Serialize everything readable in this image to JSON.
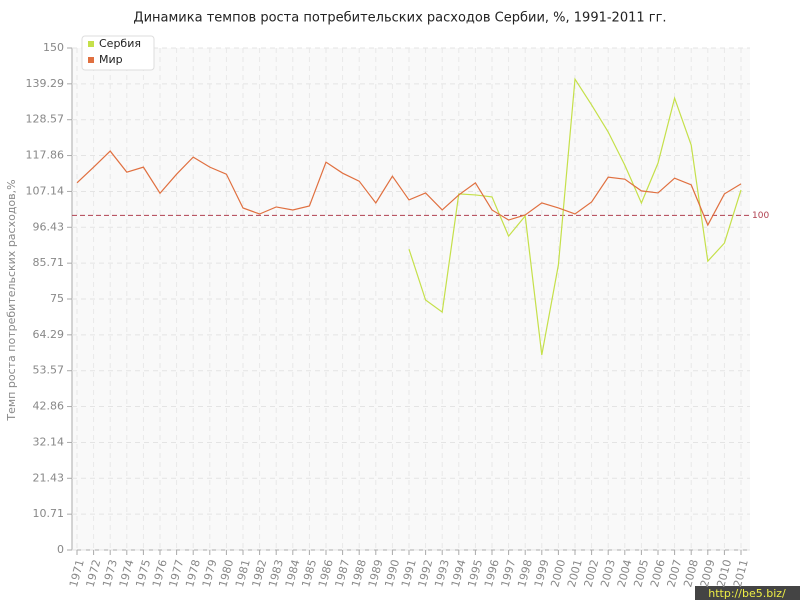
{
  "chart_data": {
    "type": "line",
    "title": "Динамика темпов роста потребительских расходов Сербии, %, 1991-2011 гг.",
    "y_label": "Темп роста потребительских расходов,%",
    "categories": [
      "1971",
      "1972",
      "1973",
      "1974",
      "1975",
      "1976",
      "1977",
      "1978",
      "1979",
      "1980",
      "1981",
      "1982",
      "1983",
      "1984",
      "1985",
      "1986",
      "1987",
      "1988",
      "1989",
      "1990",
      "1991",
      "1992",
      "1993",
      "1994",
      "1995",
      "1996",
      "1997",
      "1998",
      "1999",
      "2000",
      "2001",
      "2002",
      "2003",
      "2004",
      "2005",
      "2006",
      "2007",
      "2008",
      "2009",
      "2010",
      "2011"
    ],
    "series": [
      {
        "name": "Сербия",
        "color": "#c5e04a",
        "values": [
          null,
          null,
          null,
          null,
          null,
          null,
          null,
          null,
          null,
          null,
          null,
          null,
          null,
          null,
          null,
          null,
          null,
          null,
          null,
          null,
          89.9,
          74.7,
          71.1,
          106.4,
          106.1,
          105.5,
          93.8,
          99.8,
          58.3,
          85.2,
          140.7,
          133.0,
          124.9,
          115.0,
          103.7,
          115.6,
          135.0,
          121.0,
          86.3,
          91.7,
          107.6
        ]
      },
      {
        "name": "Мир",
        "color": "#e07040",
        "values": [
          109.7,
          114.4,
          119.2,
          112.9,
          114.4,
          106.6,
          112.3,
          117.4,
          114.4,
          112.3,
          102.2,
          100.4,
          102.5,
          101.6,
          102.8,
          115.9,
          112.6,
          110.2,
          103.7,
          111.7,
          104.6,
          106.7,
          101.6,
          106.1,
          109.7,
          101.6,
          98.6,
          100.1,
          103.7,
          102.2,
          100.4,
          104.0,
          111.4,
          110.8,
          107.3,
          106.7,
          111.1,
          109.1,
          97.1,
          106.4,
          109.4
        ]
      }
    ],
    "ylim": [
      0,
      150
    ],
    "yticks": [
      0,
      10.71,
      21.43,
      32.14,
      42.86,
      53.57,
      64.29,
      75,
      85.71,
      96.43,
      107.14,
      117.86,
      128.57,
      139.29,
      150
    ],
    "grid": true,
    "reference_line": 100,
    "reference_color": "#b04050",
    "legend": "top-left",
    "watermark": "http://be5.biz/"
  }
}
